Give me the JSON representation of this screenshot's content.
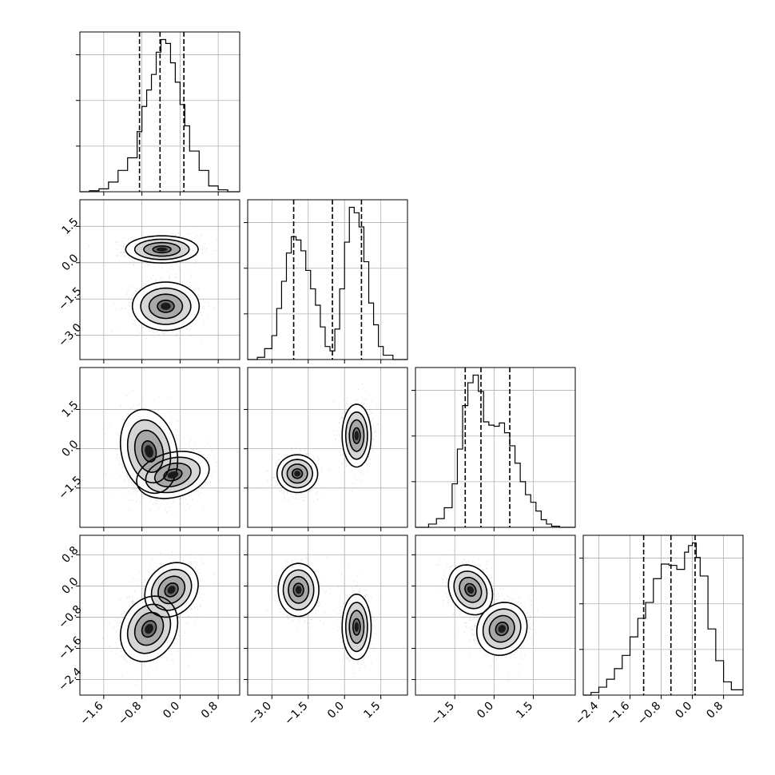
{
  "chart_data": {
    "type": "corner",
    "title": "",
    "parameters": [
      "",
      "",
      "",
      ""
    ],
    "grid": true,
    "axes": [
      {
        "range": [
          -2.1,
          1.25
        ],
        "ticks": [
          -1.6,
          -0.8,
          0.0,
          0.8
        ],
        "tick_labels": [
          "−1.6",
          "−0.8",
          "0.0",
          "0.8"
        ]
      },
      {
        "range": [
          -4.0,
          2.6
        ],
        "ticks": [
          -3.0,
          -1.5,
          0.0,
          1.5
        ],
        "tick_labels": [
          "−3.0",
          "−1.5",
          "0.0",
          "1.5"
        ]
      },
      {
        "range": [
          -3.0,
          3.1
        ],
        "ticks": [
          -1.5,
          0.0,
          1.5
        ],
        "tick_labels": [
          "−1.5",
          "0.0",
          "1.5"
        ]
      },
      {
        "range": [
          -2.8,
          1.3
        ],
        "ticks": [
          -2.4,
          -1.6,
          -0.8,
          0.0,
          0.8
        ],
        "tick_labels": [
          "−2.4",
          "−1.6",
          "−0.8",
          "0.0",
          "0.8"
        ]
      }
    ],
    "quantiles": [
      [
        -0.85,
        -0.42,
        0.08
      ],
      [
        -2.1,
        -0.5,
        0.7
      ],
      [
        -1.1,
        -0.5,
        0.6
      ],
      [
        -1.25,
        -0.55,
        0.07
      ]
    ],
    "histograms": [
      {
        "bin_edges": [
          -2.1,
          -1.9,
          -1.7,
          -1.5,
          -1.3,
          -1.1,
          -0.9,
          -0.8,
          -0.7,
          -0.6,
          -0.5,
          -0.4,
          -0.3,
          -0.2,
          -0.1,
          0.0,
          0.1,
          0.2,
          0.4,
          0.6,
          0.8,
          1.0,
          1.25
        ],
        "counts": [
          0,
          1,
          3,
          10,
          22,
          35,
          62,
          88,
          105,
          121,
          144,
          157,
          153,
          133,
          113,
          90,
          68,
          42,
          22,
          6,
          2,
          0
        ]
      },
      {
        "bin_edges": [
          -4.0,
          -3.6,
          -3.3,
          -3.0,
          -2.8,
          -2.6,
          -2.4,
          -2.2,
          -2.0,
          -1.8,
          -1.6,
          -1.4,
          -1.2,
          -1.0,
          -0.8,
          -0.6,
          -0.4,
          -0.2,
          0.0,
          0.2,
          0.4,
          0.6,
          0.8,
          1.0,
          1.2,
          1.4,
          1.6,
          2.0,
          2.6
        ],
        "counts": [
          0,
          2,
          10,
          22,
          47,
          72,
          98,
          113,
          110,
          100,
          82,
          65,
          50,
          30,
          12,
          8,
          28,
          65,
          108,
          140,
          135,
          122,
          90,
          52,
          32,
          12,
          4,
          0
        ]
      },
      {
        "bin_edges": [
          -3.0,
          -2.5,
          -2.2,
          -1.9,
          -1.6,
          -1.4,
          -1.2,
          -1.0,
          -0.8,
          -0.6,
          -0.4,
          -0.2,
          0.0,
          0.2,
          0.4,
          0.6,
          0.8,
          1.0,
          1.2,
          1.4,
          1.6,
          1.8,
          2.0,
          2.2,
          2.5,
          3.1
        ],
        "counts": [
          0,
          3,
          8,
          18,
          40,
          72,
          112,
          133,
          140,
          125,
          97,
          94,
          93,
          96,
          87,
          75,
          59,
          42,
          30,
          23,
          15,
          7,
          3,
          1,
          0
        ]
      },
      {
        "bin_edges": [
          -2.8,
          -2.6,
          -2.4,
          -2.2,
          -2.0,
          -1.8,
          -1.6,
          -1.4,
          -1.2,
          -1.0,
          -0.8,
          -0.6,
          -0.4,
          -0.2,
          -0.1,
          0.0,
          0.1,
          0.2,
          0.4,
          0.6,
          0.8,
          1.0,
          1.3
        ],
        "counts": [
          0,
          2,
          6,
          12,
          20,
          30,
          44,
          58,
          70,
          88,
          99,
          98,
          95,
          108,
          113,
          115,
          104,
          90,
          50,
          26,
          10,
          4
        ]
      }
    ],
    "pairs": [
      {
        "x_param": 0,
        "y_param": 1,
        "clusters": [
          {
            "center": [
              -0.38,
              0.55
            ],
            "sigma": [
              0.38,
              0.28
            ],
            "rho": 0.0
          },
          {
            "center": [
              -0.3,
              -1.8
            ],
            "sigma": [
              0.35,
              0.5
            ],
            "rho": 0.0
          }
        ]
      },
      {
        "x_param": 0,
        "y_param": 2,
        "clusters": [
          {
            "center": [
              -0.65,
              -0.1
            ],
            "sigma": [
              0.3,
              0.8
            ],
            "rho": -0.2
          },
          {
            "center": [
              -0.15,
              -1.0
            ],
            "sigma": [
              0.38,
              0.45
            ],
            "rho": 0.25
          }
        ]
      },
      {
        "x_param": 1,
        "y_param": 2,
        "clusters": [
          {
            "center": [
              -1.95,
              -0.95
            ],
            "sigma": [
              0.42,
              0.36
            ],
            "rho": 0.0
          },
          {
            "center": [
              0.5,
              0.5
            ],
            "sigma": [
              0.3,
              0.6
            ],
            "rho": 0.0
          }
        ]
      },
      {
        "x_param": 0,
        "y_param": 3,
        "clusters": [
          {
            "center": [
              -0.18,
              -0.1
            ],
            "sigma": [
              0.28,
              0.35
            ],
            "rho": 0.2
          },
          {
            "center": [
              -0.65,
              -1.1
            ],
            "sigma": [
              0.3,
              0.42
            ],
            "rho": 0.2
          }
        ]
      },
      {
        "x_param": 1,
        "y_param": 3,
        "clusters": [
          {
            "center": [
              -1.9,
              -0.1
            ],
            "sigma": [
              0.42,
              0.34
            ],
            "rho": 0.0
          },
          {
            "center": [
              0.5,
              -1.05
            ],
            "sigma": [
              0.3,
              0.42
            ],
            "rho": 0.0
          }
        ]
      },
      {
        "x_param": 2,
        "y_param": 3,
        "clusters": [
          {
            "center": [
              -0.9,
              -0.1
            ],
            "sigma": [
              0.42,
              0.32
            ],
            "rho": -0.2
          },
          {
            "center": [
              0.3,
              -1.1
            ],
            "sigma": [
              0.48,
              0.34
            ],
            "rho": 0.1
          }
        ]
      }
    ],
    "contour_levels": [
      0.5,
      1.0,
      1.5,
      2.0
    ]
  }
}
